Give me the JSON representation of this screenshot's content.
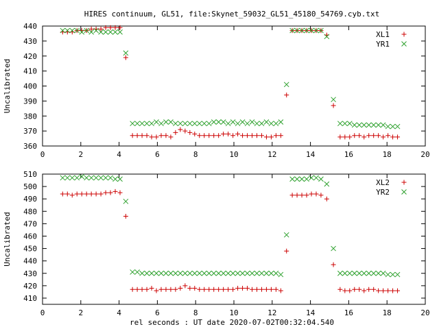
{
  "title": "HIRES continuum, GL51, file:Skynet_59032_GL51_45180_54769.cyb.txt",
  "xlabel": "rel seconds : UT date 2020-07-02T00:32:04.540",
  "colors": {
    "XL": "#cc0000",
    "YR": "#2ca02c"
  },
  "chart_data": [
    {
      "type": "scatter",
      "ylabel": "Uncalibrated",
      "xlim": [
        0,
        20
      ],
      "ylim": [
        360,
        440
      ],
      "xticks": [
        0,
        2,
        4,
        6,
        8,
        10,
        12,
        14,
        16,
        18,
        20
      ],
      "yticks": [
        360,
        370,
        380,
        390,
        400,
        410,
        420,
        430,
        440
      ],
      "legend": "top-right",
      "series": [
        {
          "name": "XL1",
          "marker": "plus",
          "x": [
            1.05,
            1.3,
            1.55,
            1.8,
            2.05,
            2.3,
            2.55,
            2.8,
            3.05,
            3.3,
            3.55,
            3.8,
            4.05,
            4.35,
            4.7,
            4.95,
            5.2,
            5.45,
            5.7,
            5.95,
            6.2,
            6.45,
            6.7,
            6.95,
            7.2,
            7.45,
            7.7,
            7.95,
            8.2,
            8.45,
            8.7,
            8.95,
            9.2,
            9.45,
            9.7,
            9.95,
            10.2,
            10.45,
            10.7,
            10.95,
            11.2,
            11.45,
            11.7,
            11.95,
            12.2,
            12.45,
            12.75,
            13.05,
            13.3,
            13.55,
            13.8,
            14.05,
            14.3,
            14.55,
            14.85,
            15.2,
            15.55,
            15.8,
            16.05,
            16.3,
            16.55,
            16.8,
            17.05,
            17.3,
            17.55,
            17.8,
            18.05,
            18.3,
            18.55
          ],
          "y": [
            436,
            436,
            436,
            437,
            437,
            437,
            438,
            438,
            438,
            439,
            439,
            439,
            439,
            419,
            367,
            367,
            367,
            367,
            366,
            366,
            367,
            367,
            366,
            369,
            371,
            370,
            369,
            368,
            367,
            367,
            367,
            367,
            367,
            368,
            368,
            367,
            368,
            367,
            367,
            367,
            367,
            367,
            366,
            366,
            367,
            367,
            394,
            437,
            437,
            437,
            437,
            437,
            437,
            437,
            434,
            387,
            366,
            366,
            366,
            367,
            367,
            366,
            367,
            367,
            367,
            366,
            367,
            366,
            366
          ]
        },
        {
          "name": "YR1",
          "marker": "cross",
          "x": [
            1.05,
            1.3,
            1.55,
            1.8,
            2.05,
            2.3,
            2.55,
            2.8,
            3.05,
            3.3,
            3.55,
            3.8,
            4.05,
            4.35,
            4.7,
            4.95,
            5.2,
            5.45,
            5.7,
            5.95,
            6.2,
            6.45,
            6.7,
            6.95,
            7.2,
            7.45,
            7.7,
            7.95,
            8.2,
            8.45,
            8.7,
            8.95,
            9.2,
            9.45,
            9.7,
            9.95,
            10.2,
            10.45,
            10.7,
            10.95,
            11.2,
            11.45,
            11.7,
            11.95,
            12.2,
            12.45,
            12.75,
            13.05,
            13.3,
            13.55,
            13.8,
            14.05,
            14.3,
            14.55,
            14.85,
            15.2,
            15.55,
            15.8,
            16.05,
            16.3,
            16.55,
            16.8,
            17.05,
            17.3,
            17.55,
            17.8,
            18.05,
            18.3,
            18.55
          ],
          "y": [
            437,
            437,
            437,
            437,
            436,
            437,
            436,
            437,
            436,
            436,
            436,
            436,
            436,
            422,
            375,
            375,
            375,
            375,
            375,
            376,
            375,
            376,
            376,
            375,
            375,
            375,
            375,
            375,
            375,
            375,
            375,
            376,
            376,
            376,
            375,
            376,
            375,
            376,
            375,
            376,
            375,
            375,
            376,
            375,
            375,
            376,
            401,
            437,
            437,
            437,
            437,
            437,
            437,
            437,
            433,
            391,
            375,
            375,
            375,
            374,
            374,
            374,
            374,
            374,
            374,
            374,
            373,
            373,
            373
          ]
        }
      ]
    },
    {
      "type": "scatter",
      "ylabel": "Uncalibrated",
      "xlim": [
        0,
        20
      ],
      "ylim": [
        405,
        510
      ],
      "xticks": [
        0,
        2,
        4,
        6,
        8,
        10,
        12,
        14,
        16,
        18,
        20
      ],
      "yticks": [
        410,
        420,
        430,
        440,
        450,
        460,
        470,
        480,
        490,
        500,
        510
      ],
      "legend": "top-right",
      "series": [
        {
          "name": "XL2",
          "marker": "plus",
          "x": [
            1.05,
            1.3,
            1.55,
            1.8,
            2.05,
            2.3,
            2.55,
            2.8,
            3.05,
            3.3,
            3.55,
            3.8,
            4.05,
            4.35,
            4.7,
            4.95,
            5.2,
            5.45,
            5.7,
            5.95,
            6.2,
            6.45,
            6.7,
            6.95,
            7.2,
            7.45,
            7.7,
            7.95,
            8.2,
            8.45,
            8.7,
            8.95,
            9.2,
            9.45,
            9.7,
            9.95,
            10.2,
            10.45,
            10.7,
            10.95,
            11.2,
            11.45,
            11.7,
            11.95,
            12.2,
            12.45,
            12.75,
            13.05,
            13.3,
            13.55,
            13.8,
            14.05,
            14.3,
            14.55,
            14.85,
            15.2,
            15.55,
            15.8,
            16.05,
            16.3,
            16.55,
            16.8,
            17.05,
            17.3,
            17.55,
            17.8,
            18.05,
            18.3,
            18.55
          ],
          "y": [
            494,
            494,
            493,
            494,
            494,
            494,
            494,
            494,
            494,
            495,
            495,
            496,
            495,
            476,
            417,
            417,
            417,
            417,
            418,
            416,
            417,
            417,
            417,
            417,
            418,
            420,
            418,
            418,
            417,
            417,
            417,
            417,
            417,
            417,
            417,
            417,
            418,
            418,
            418,
            417,
            417,
            417,
            417,
            417,
            417,
            416,
            448,
            493,
            493,
            493,
            493,
            494,
            494,
            493,
            490,
            437,
            417,
            416,
            416,
            417,
            417,
            416,
            417,
            417,
            416,
            416,
            416,
            416,
            416
          ]
        },
        {
          "name": "YR2",
          "marker": "cross",
          "x": [
            1.05,
            1.3,
            1.55,
            1.8,
            2.05,
            2.3,
            2.55,
            2.8,
            3.05,
            3.3,
            3.55,
            3.8,
            4.05,
            4.35,
            4.7,
            4.95,
            5.2,
            5.45,
            5.7,
            5.95,
            6.2,
            6.45,
            6.7,
            6.95,
            7.2,
            7.45,
            7.7,
            7.95,
            8.2,
            8.45,
            8.7,
            8.95,
            9.2,
            9.45,
            9.7,
            9.95,
            10.2,
            10.45,
            10.7,
            10.95,
            11.2,
            11.45,
            11.7,
            11.95,
            12.2,
            12.45,
            12.75,
            13.05,
            13.3,
            13.55,
            13.8,
            14.05,
            14.3,
            14.55,
            14.85,
            15.2,
            15.55,
            15.8,
            16.05,
            16.3,
            16.55,
            16.8,
            17.05,
            17.3,
            17.55,
            17.8,
            18.05,
            18.3,
            18.55
          ],
          "y": [
            507,
            507,
            507,
            507,
            508,
            507,
            507,
            507,
            507,
            507,
            507,
            506,
            506,
            488,
            431,
            431,
            430,
            430,
            430,
            430,
            430,
            430,
            430,
            430,
            430,
            430,
            430,
            430,
            430,
            430,
            430,
            430,
            430,
            430,
            430,
            430,
            430,
            430,
            430,
            430,
            430,
            430,
            430,
            430,
            430,
            429,
            461,
            506,
            506,
            506,
            506,
            507,
            507,
            506,
            502,
            450,
            430,
            430,
            430,
            430,
            430,
            430,
            430,
            430,
            430,
            430,
            429,
            429,
            429
          ]
        }
      ]
    }
  ]
}
